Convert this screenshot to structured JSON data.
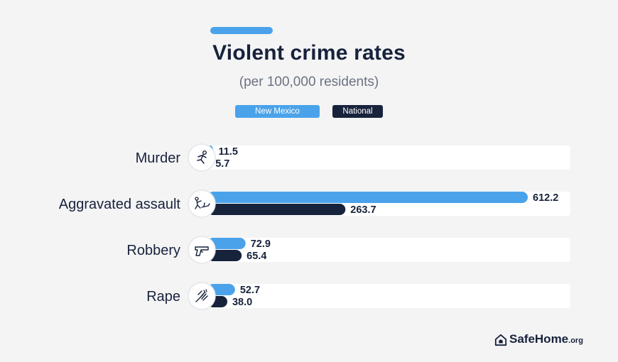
{
  "colors": {
    "new_mexico": "#4aa3ea",
    "national": "#17223b",
    "track": "#ffffff",
    "text": "#17223b"
  },
  "header": {
    "title": "Violent crime rates",
    "subtitle": "(per 100,000 residents)"
  },
  "legend": [
    {
      "label": "New Mexico",
      "color": "#4aa3ea"
    },
    {
      "label": "National",
      "color": "#17223b"
    }
  ],
  "brand": {
    "name": "SafeHome",
    "tld": ".org",
    "icon": "house-shield-icon"
  },
  "chart_data": {
    "type": "bar",
    "orientation": "horizontal",
    "title": "Violent crime rates",
    "subtitle": "(per 100,000 residents)",
    "xlabel": "",
    "ylabel": "",
    "xlim": [
      0,
      650
    ],
    "grid": false,
    "legend_position": "top-center",
    "categories": [
      "Murder",
      "Aggravated assault",
      "Robbery",
      "Rape"
    ],
    "category_icons": [
      "running-person-icon",
      "assault-icon",
      "handgun-icon",
      "hand-grab-icon"
    ],
    "series": [
      {
        "name": "New Mexico",
        "values": [
          11.5,
          612.2,
          72.9,
          52.7
        ],
        "labels": [
          "11.5",
          "612.2",
          "72.9",
          "52.7"
        ]
      },
      {
        "name": "National",
        "values": [
          5.7,
          263.7,
          65.4,
          38.0
        ],
        "labels": [
          "5.7",
          "263.7",
          "65.4",
          "38.0"
        ]
      }
    ]
  }
}
